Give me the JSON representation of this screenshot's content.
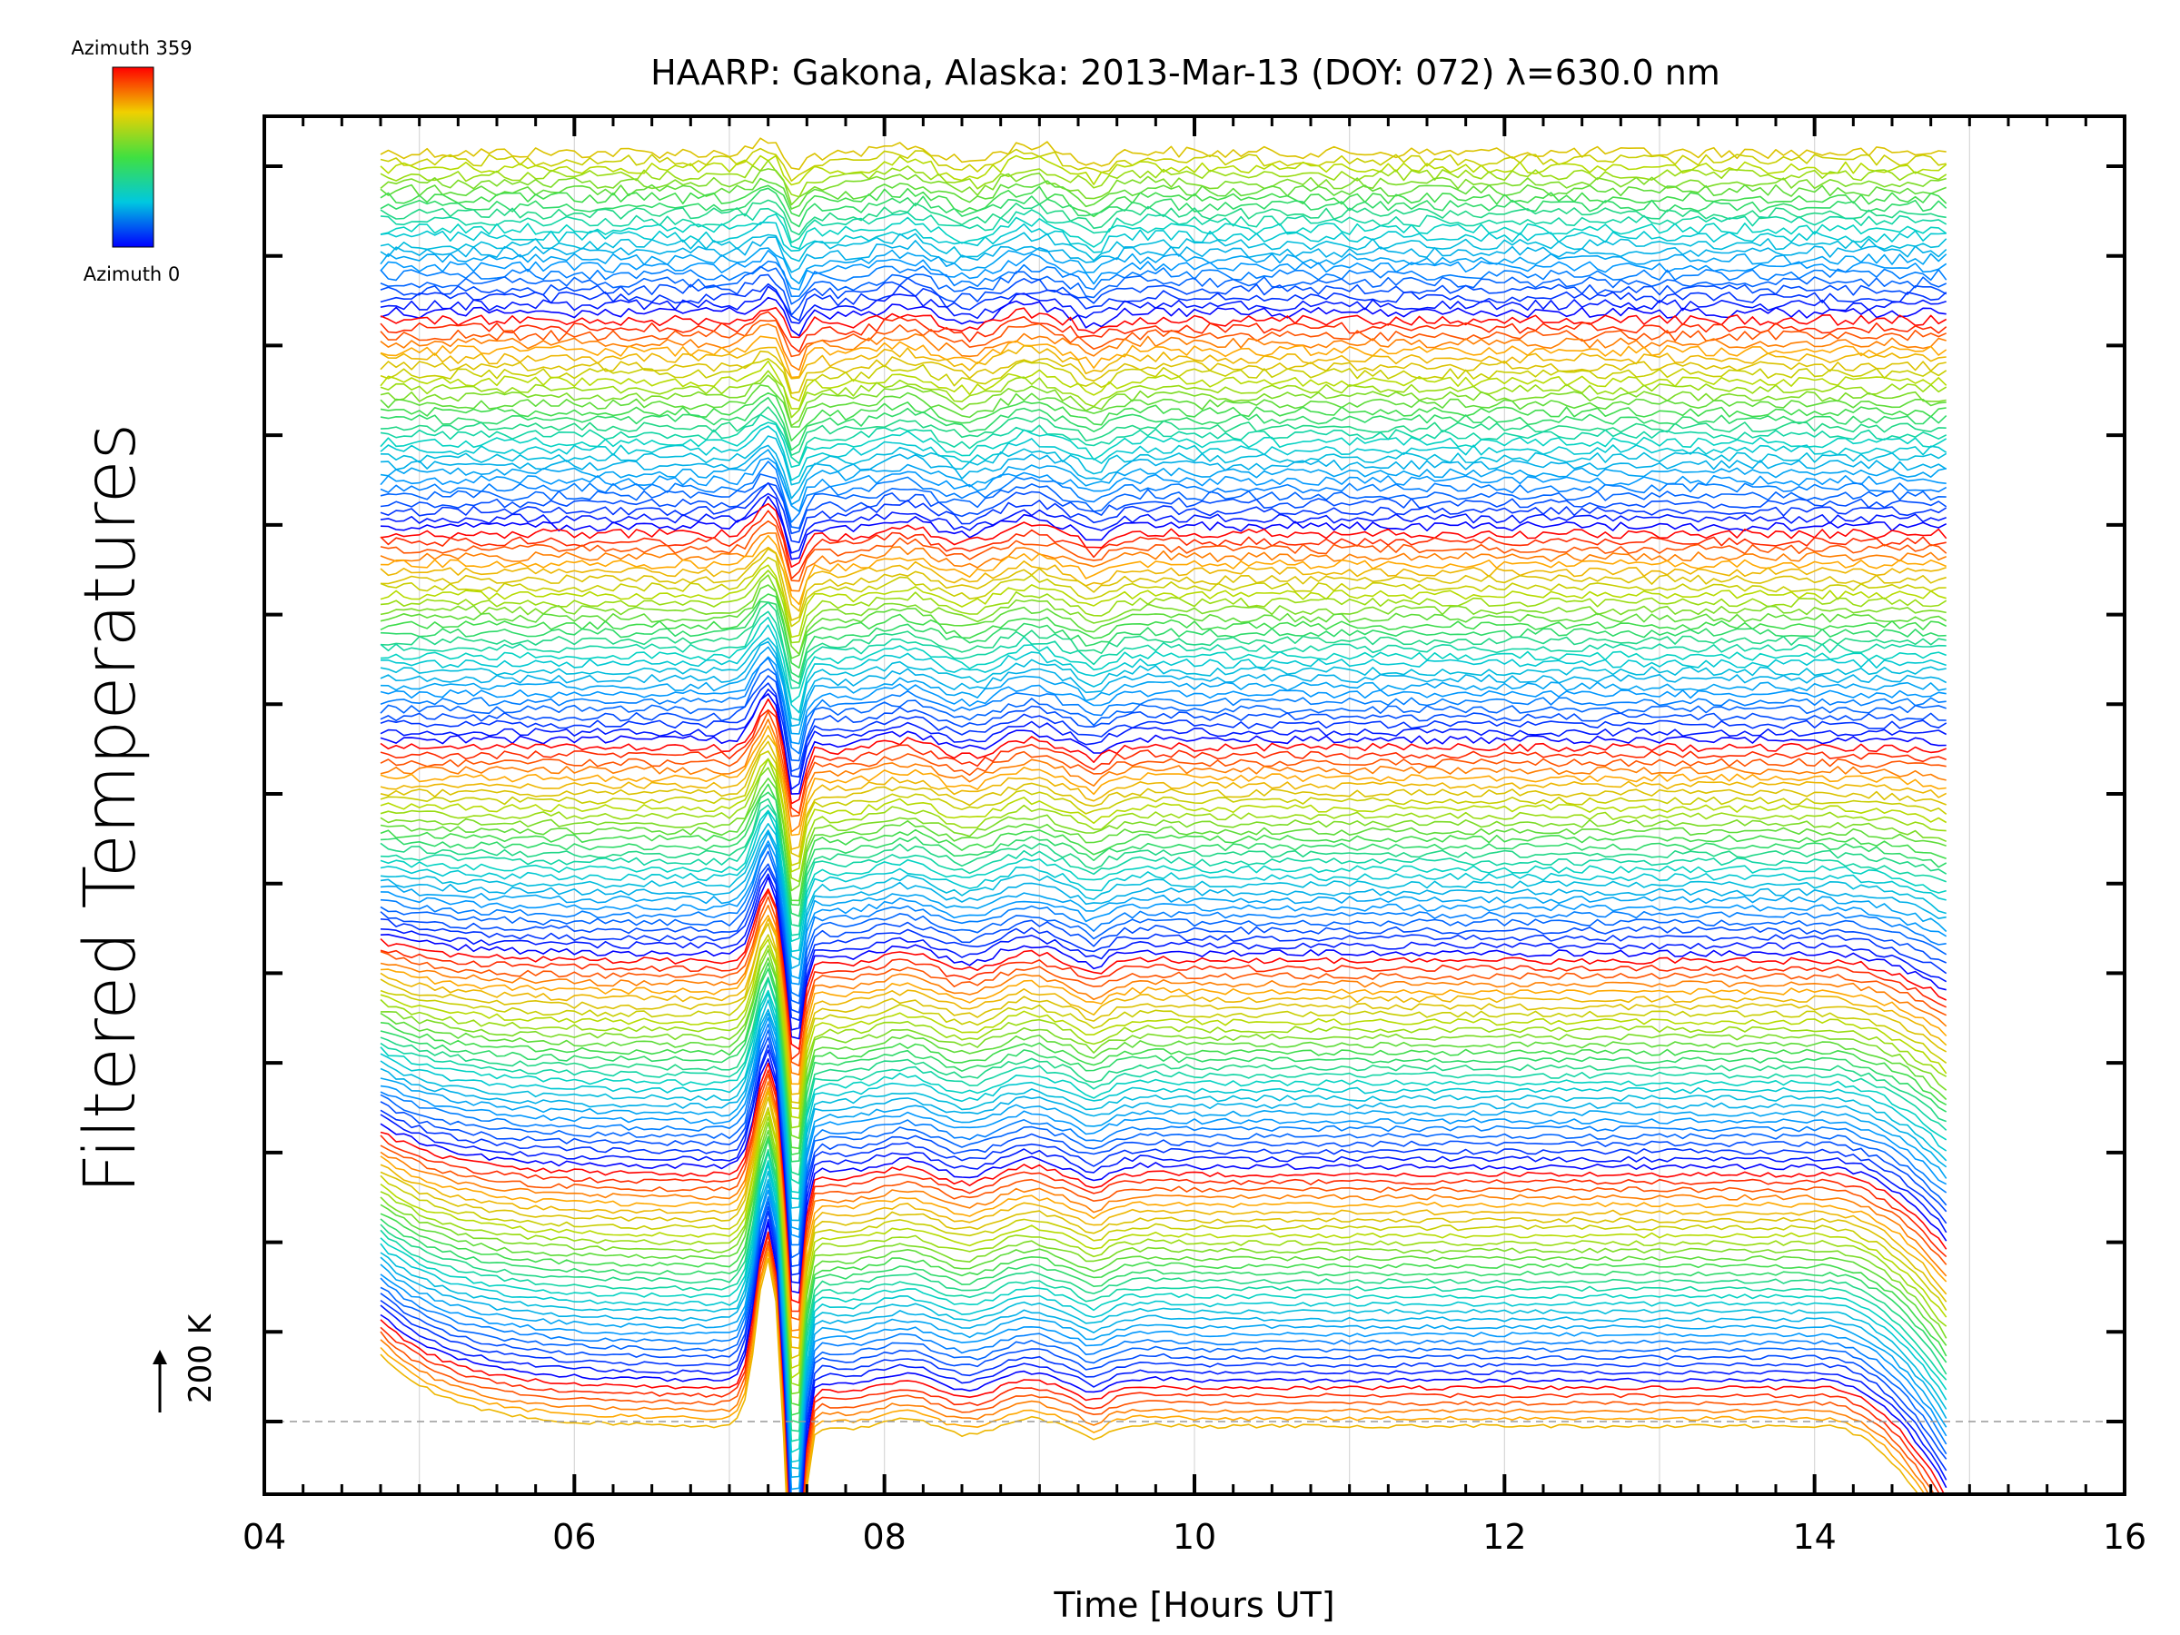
{
  "chart_data": {
    "type": "line",
    "title": "HAARP: Gakona,  Alaska: 2013-Mar-13 (DOY: 072) λ=630.0 nm",
    "xlabel": "Time [Hours UT]",
    "ylabel": "Filtered Temperatures",
    "xlim": [
      4,
      16
    ],
    "x_ticks": [
      "04",
      "06",
      "08",
      "10",
      "12",
      "14",
      "16"
    ],
    "y_ticks_count": 15,
    "colorbar": {
      "top_label": "Azimuth 359",
      "bottom_label": "Azimuth 0",
      "colormap": "rainbow (blue → cyan → green → yellow → red)"
    },
    "scale_bar": {
      "label": "200 K",
      "value_k": 200
    },
    "time_range_hours": [
      4.75,
      14.85
    ],
    "series_count": 168,
    "series_description": "Stacked filtered temperature traces, one per azimuth, colored by azimuth; offset vertically in repeating blocks",
    "features": [
      {
        "time_h": 7.3,
        "description": "sharp positive spike followed by deep dip"
      },
      {
        "time_h": 8.0,
        "description": "oscillation"
      },
      {
        "time_h": 8.8,
        "description": "oscillation"
      },
      {
        "time_h": 9.4,
        "description": "oscillation"
      },
      {
        "time_h": 14.7,
        "description": "strong drop at end of night"
      }
    ],
    "grid": "vertical lines at each hour",
    "baseline": "dashed horizontal line at lowest trace"
  }
}
